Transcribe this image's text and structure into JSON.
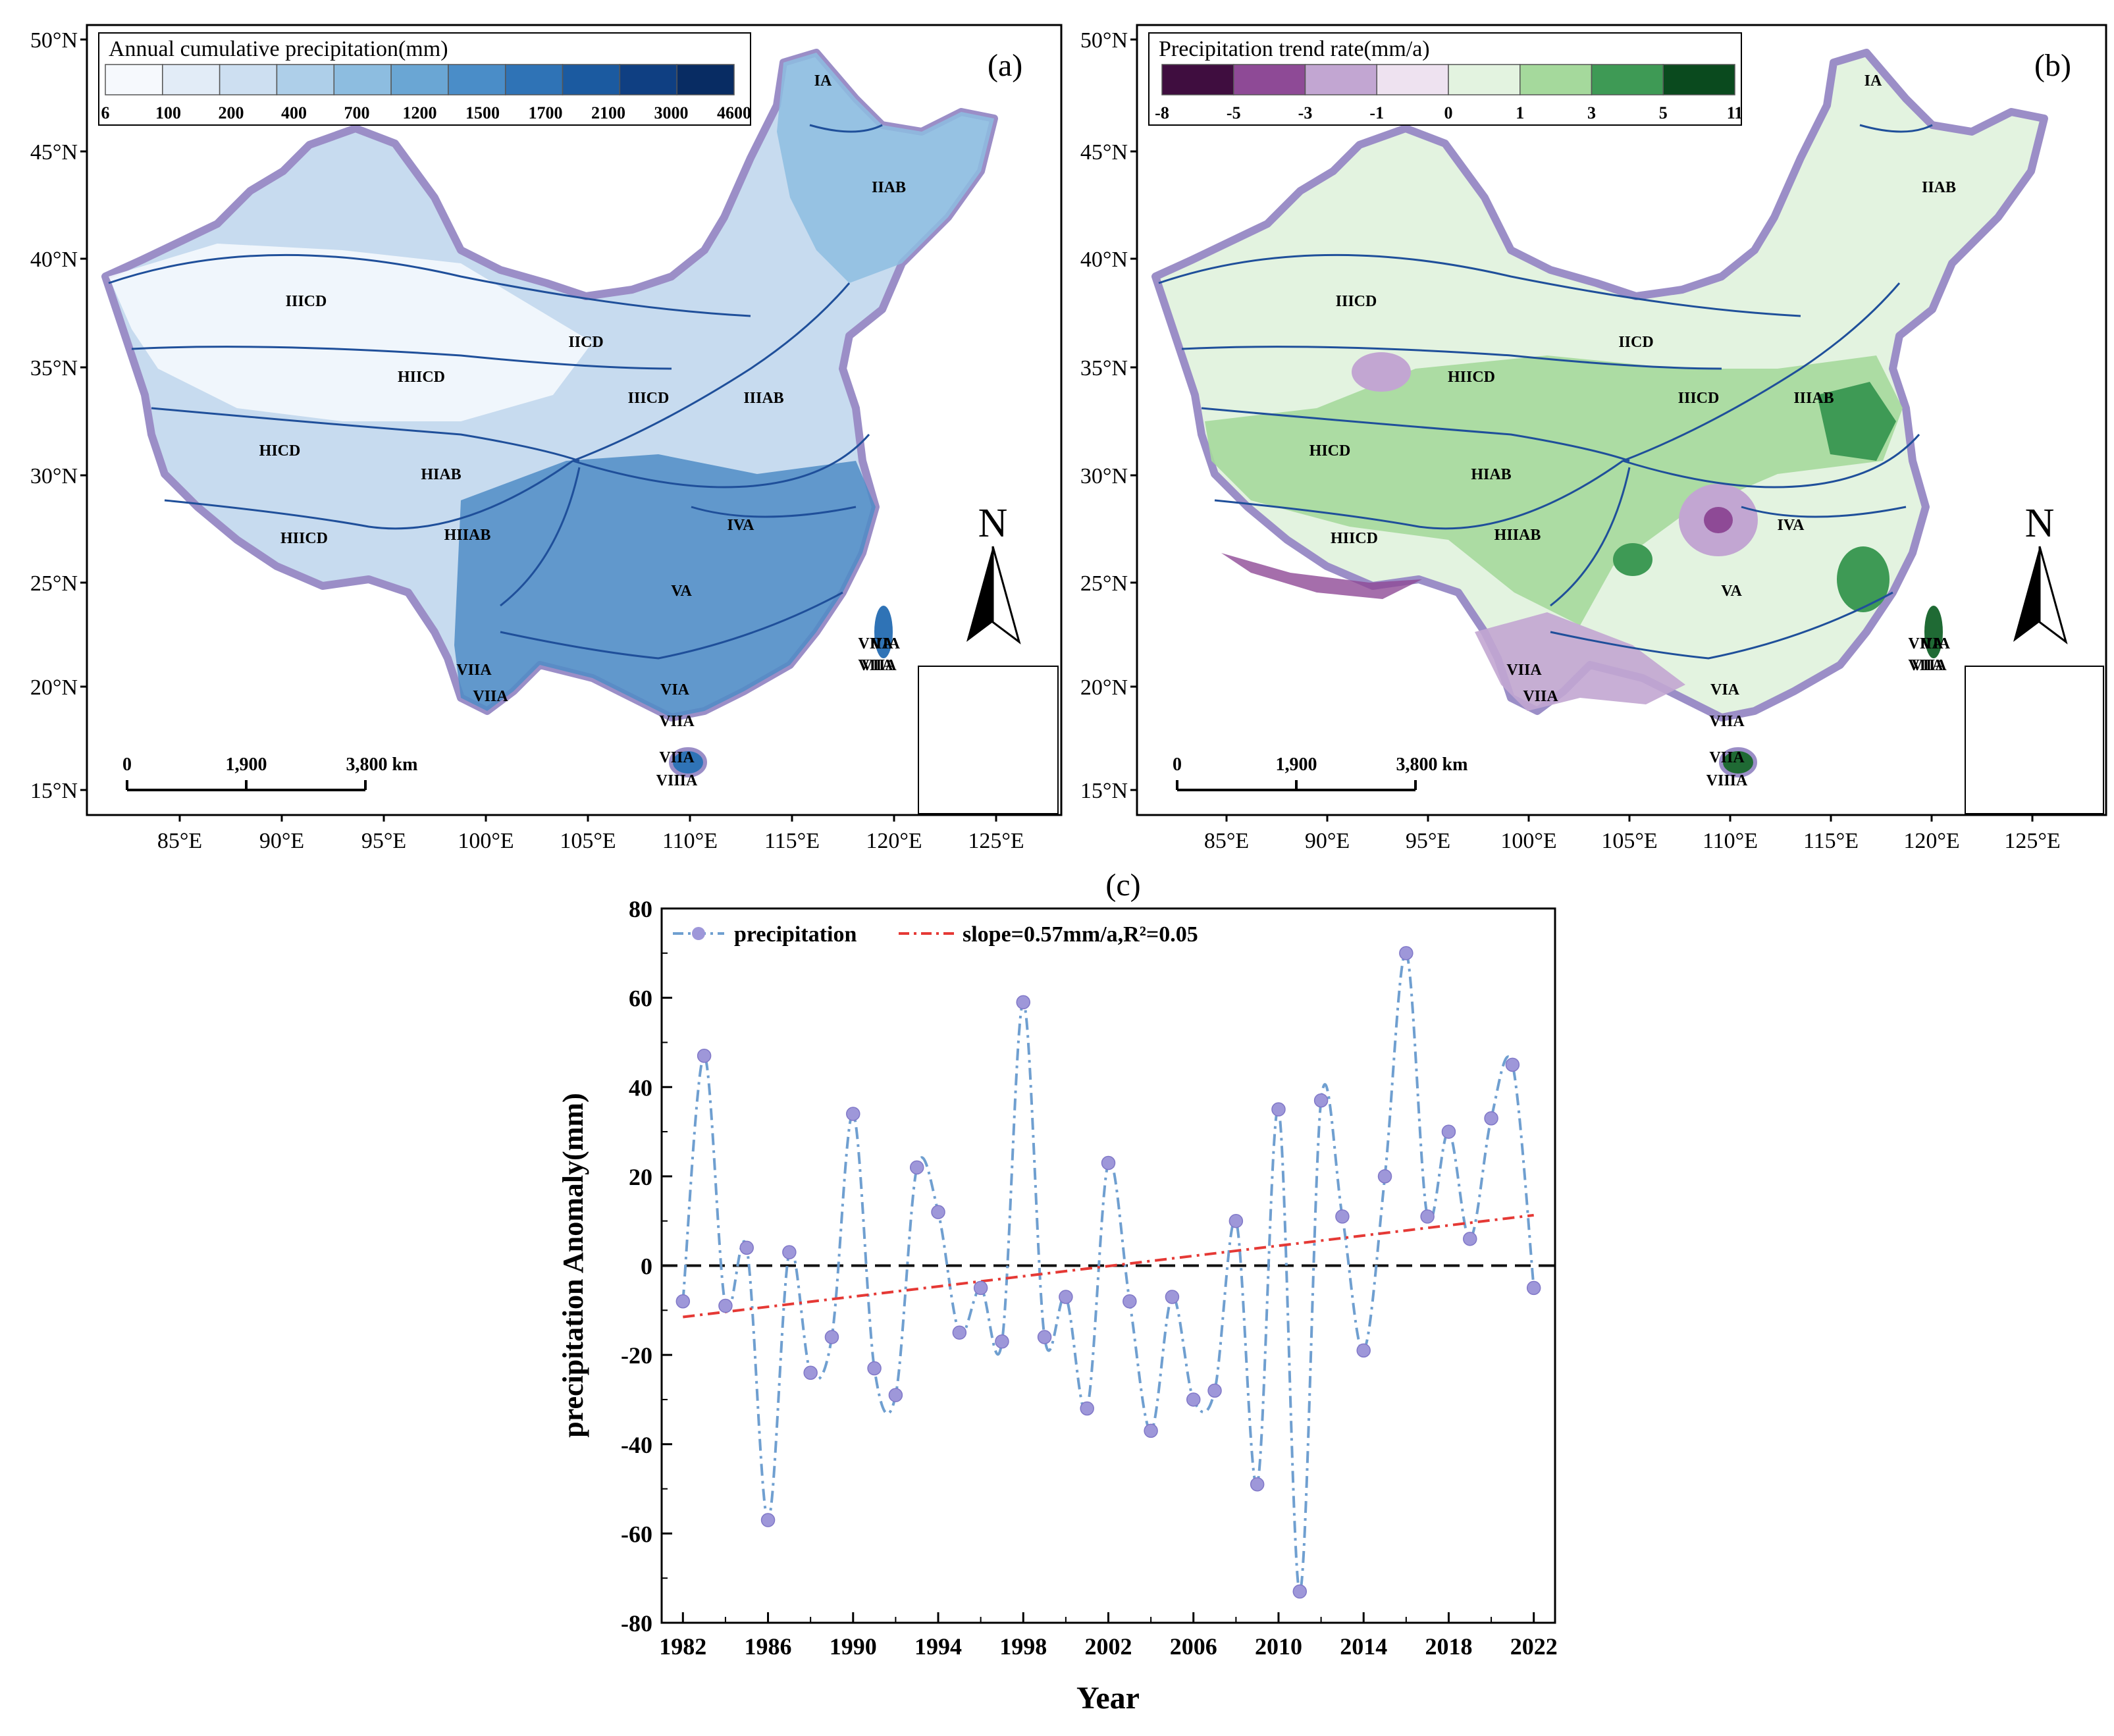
{
  "chart_data": [
    {
      "type": "map",
      "panel_label": "(a)",
      "title": "Annual cumulative precipitation(mm)",
      "legend": {
        "breaks": [
          "6",
          "100",
          "200",
          "400",
          "700",
          "1200",
          "1500",
          "1700",
          "2100",
          "3000",
          "4600"
        ],
        "colors": [
          "#f6f9fd",
          "#e2ecf7",
          "#cddff1",
          "#aecfe9",
          "#8dbde0",
          "#6aa6d4",
          "#4a8dc8",
          "#2f73b6",
          "#1b5aa0",
          "#0f3f82",
          "#082c63"
        ]
      },
      "lat_ticks": [
        "50°N",
        "45°N",
        "40°N",
        "35°N",
        "30°N",
        "25°N",
        "20°N",
        "15°N"
      ],
      "lon_ticks": [
        "85°E",
        "90°E",
        "95°E",
        "100°E",
        "105°E",
        "110°E",
        "115°E",
        "120°E",
        "125°E"
      ],
      "scale_bar": {
        "labels": [
          "0",
          "1,900",
          "3,800 km"
        ]
      },
      "north_label": "N",
      "regions": [
        "IA",
        "IIAB",
        "IIICD",
        "IICD",
        "HIICD",
        "IIICD",
        "IIIAB",
        "HICD",
        "HIAB",
        "HIIAB",
        "HIICD",
        "IVA",
        "VA",
        "VIA",
        "VIIA",
        "VIIA",
        "VIA",
        "VIIA",
        "VIIA",
        "VIIA",
        "VIIIA",
        "VIIA",
        "VIIA"
      ]
    },
    {
      "type": "map",
      "panel_label": "(b)",
      "title": "Precipitation trend rate(mm/a)",
      "legend": {
        "breaks": [
          "-8",
          "-5",
          "-3",
          "-1",
          "0",
          "1",
          "3",
          "5",
          "11"
        ],
        "colors": [
          "#3f0d3f",
          "#8e4a96",
          "#c2a6d2",
          "#eee2f0",
          "#e3f3e0",
          "#a5d99c",
          "#3e9a55",
          "#0a4a1e"
        ]
      },
      "lat_ticks": [
        "50°N",
        "45°N",
        "40°N",
        "35°N",
        "30°N",
        "25°N",
        "20°N",
        "15°N"
      ],
      "lon_ticks": [
        "85°E",
        "90°E",
        "95°E",
        "100°E",
        "105°E",
        "110°E",
        "115°E",
        "120°E",
        "125°E"
      ],
      "scale_bar": {
        "labels": [
          "0",
          "1,900",
          "3,800 km"
        ]
      },
      "north_label": "N",
      "regions": [
        "IA",
        "IIAB",
        "IIICD",
        "IICD",
        "HIICD",
        "IIICD",
        "IIIAB",
        "HICD",
        "HIAB",
        "HIIAB",
        "HIICD",
        "IVA",
        "VA",
        "VIA",
        "VIIA",
        "VIIA",
        "VIA",
        "VIIA",
        "VIIA",
        "VIIA",
        "VIIIA",
        "VIIA",
        "VIIA"
      ]
    },
    {
      "type": "line",
      "panel_label": "(c)",
      "xlabel": "Year",
      "ylabel": "precipitation Anomaly(mm)",
      "ylim": [
        -80,
        80
      ],
      "xlim": [
        1981,
        2023
      ],
      "yticks": [
        -80,
        -60,
        -40,
        -20,
        0,
        20,
        40,
        60,
        80
      ],
      "xticks": [
        1982,
        1986,
        1990,
        1994,
        1998,
        2002,
        2006,
        2010,
        2014,
        2018,
        2022
      ],
      "series": [
        {
          "name": "precipitation",
          "color": "#6f9fd0",
          "marker_color": "#9e97d9",
          "x": [
            1982,
            1983,
            1984,
            1985,
            1986,
            1987,
            1988,
            1989,
            1990,
            1991,
            1992,
            1993,
            1994,
            1995,
            1996,
            1997,
            1998,
            1999,
            2000,
            2001,
            2002,
            2003,
            2004,
            2005,
            2006,
            2007,
            2008,
            2009,
            2010,
            2011,
            2012,
            2013,
            2014,
            2015,
            2016,
            2017,
            2018,
            2019,
            2020,
            2021,
            2022
          ],
          "values": [
            -8,
            47,
            -9,
            4,
            -57,
            3,
            -24,
            -16,
            34,
            -23,
            -29,
            22,
            12,
            -15,
            -5,
            -17,
            59,
            -16,
            -7,
            -32,
            23,
            -8,
            -37,
            -7,
            -30,
            -28,
            10,
            -49,
            35,
            -73,
            37,
            11,
            -19,
            20,
            70,
            11,
            30,
            6,
            33,
            45,
            -5
          ]
        },
        {
          "name": "slope=0.57mm/a,R²=0.05",
          "color": "#e53935",
          "type": "trend",
          "x": [
            1982,
            2022
          ],
          "values": [
            -11.5,
            11.3
          ]
        }
      ],
      "reference_line": {
        "y": 0,
        "style": "dashed",
        "color": "#111111"
      }
    }
  ]
}
